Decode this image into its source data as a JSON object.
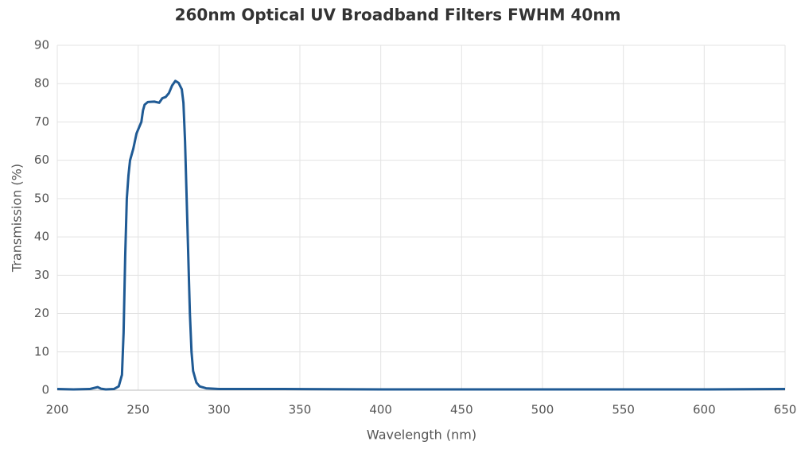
{
  "chart_data": {
    "type": "line",
    "title": "260nm Optical UV Broadband Filters FWHM 40nm",
    "x_label": "Wavelength (nm)",
    "y_label": "Transmission (%)",
    "x": [
      200,
      210,
      220,
      225,
      227,
      230,
      235,
      238,
      240,
      241,
      242,
      243,
      244,
      245,
      247,
      249,
      251,
      252,
      253,
      254,
      256,
      260,
      263,
      265,
      267,
      269,
      271,
      273,
      275,
      277,
      278,
      279,
      280,
      281,
      282,
      283,
      284,
      286,
      288,
      292,
      300,
      320,
      340,
      400,
      450,
      500,
      550,
      600,
      650
    ],
    "series": [
      {
        "name": "Transmission",
        "color": "#1f5a94",
        "values": [
          0.3,
          0.2,
          0.3,
          0.8,
          0.4,
          0.2,
          0.3,
          1,
          4,
          15,
          35,
          50,
          56,
          60,
          63,
          67,
          69,
          70,
          73,
          74.5,
          75.2,
          75.3,
          75,
          76.2,
          76.5,
          77.5,
          79.5,
          80.7,
          80.2,
          78.5,
          75,
          65,
          50,
          35,
          20,
          10,
          5,
          2,
          1,
          0.5,
          0.3,
          0.3,
          0.3,
          0.2,
          0.2,
          0.2,
          0.2,
          0.2,
          0.3
        ]
      }
    ],
    "xlim": [
      200,
      650
    ],
    "xticks": [
      200,
      250,
      300,
      350,
      400,
      450,
      500,
      550,
      600,
      650
    ],
    "ylim": [
      0,
      90
    ],
    "yticks": [
      0,
      10,
      20,
      30,
      40,
      50,
      60,
      70,
      80,
      90
    ],
    "grid": true
  }
}
